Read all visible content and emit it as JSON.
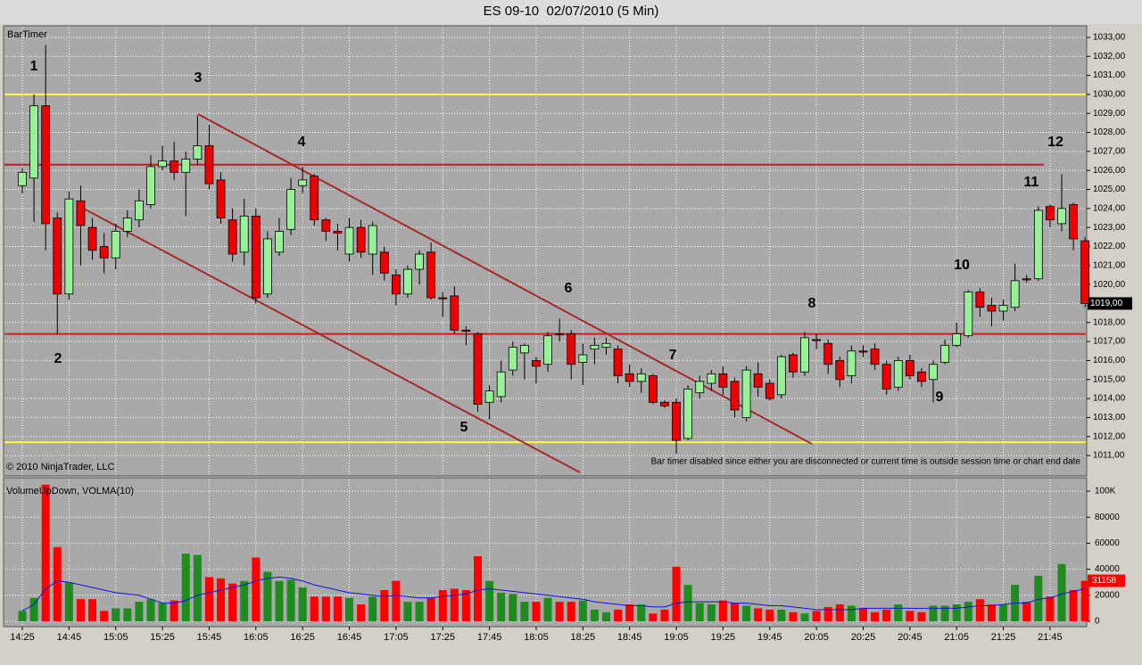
{
  "chart_data": [
    {
      "type": "candlestick",
      "title": "ES 09-10  02/07/2010 (5 Min)",
      "indicator_label": "BarTimer",
      "copyright": "© 2010 NinjaTrader, LLC",
      "notice": "Bar timer disabled since either you are disconnected or current time is outside session time or chart end date",
      "up_color": "#98f098",
      "down_color": "#ee0000",
      "open": [
        1025.2,
        1025.6,
        1029.4,
        1023.5,
        1019.5,
        1024.4,
        1023,
        1022,
        1021.4,
        1022.8,
        1023.4,
        1024.2,
        1026.2,
        1026.5,
        1025.9,
        1026.6,
        1027.3,
        1025.5,
        1023.4,
        1021.7,
        1023.6,
        1019.5,
        1021.7,
        1022.9,
        1025.2,
        1025.7,
        1023.4,
        1022.8,
        1021.6,
        1023,
        1021.6,
        1021.7,
        1020.5,
        1019.5,
        1020.8,
        1021.7,
        1019.3,
        1019.4,
        1017.6,
        1017.4,
        1013.8,
        1014.1,
        1015.5,
        1016.4,
        1016,
        1015.8,
        1017.4,
        1017.4,
        1015.9,
        1016.6,
        1016.7,
        1016.6,
        1015.3,
        1014.9,
        1015.2,
        1013.8,
        1013.8,
        1011.9,
        1014.3,
        1014.8,
        1015.3,
        1014.9,
        1013,
        1015.3,
        1014.8,
        1014.2,
        1016.3,
        1015.4,
        1017.1,
        1016.9,
        1016,
        1015.2,
        1016.5,
        1016.6,
        1015.8,
        1014.6,
        1016,
        1015.4,
        1015,
        1015.9,
        1016.8,
        1017.3,
        1019.6,
        1018.9,
        1018.6,
        1018.8,
        1020.3,
        1020.3,
        1024.1,
        1023.2,
        1024.2,
        1022.3
      ],
      "high": [
        1026.1,
        1030,
        1032.6,
        1023.8,
        1024.9,
        1025.2,
        1023.5,
        1022.7,
        1023.2,
        1023.9,
        1025,
        1026.8,
        1027.3,
        1027.5,
        1027,
        1028.9,
        1028.4,
        1025.9,
        1024,
        1024.5,
        1024,
        1022.8,
        1023.5,
        1025.6,
        1026.2,
        1025.8,
        1023.5,
        1023.2,
        1023.5,
        1023.4,
        1023.3,
        1022,
        1020.8,
        1021,
        1021.8,
        1022.2,
        1019.6,
        1019.9,
        1017.8,
        1017.5,
        1014.7,
        1016,
        1017,
        1016.9,
        1016.2,
        1017.5,
        1018.2,
        1017.6,
        1016.9,
        1017.2,
        1017.2,
        1016.8,
        1015.8,
        1015.6,
        1015.3,
        1013.9,
        1014,
        1014.7,
        1015.2,
        1015.5,
        1015.7,
        1015.1,
        1015.7,
        1015.9,
        1015,
        1016.3,
        1016.4,
        1017.5,
        1017.4,
        1017.1,
        1016.2,
        1016.8,
        1016.8,
        1016.9,
        1016,
        1016.2,
        1016.3,
        1015.6,
        1016,
        1017.1,
        1018,
        1019.7,
        1019.8,
        1019.3,
        1019.2,
        1021.1,
        1020.5,
        1024.1,
        1024.2,
        1025.8,
        1024.3,
        1022.5
      ],
      "low": [
        1024.8,
        1023.3,
        1021.8,
        1017.4,
        1019.2,
        1021,
        1021.3,
        1020.6,
        1020.8,
        1022.5,
        1023,
        1024,
        1026,
        1025.5,
        1023.6,
        1026.3,
        1025,
        1023.2,
        1021.2,
        1021,
        1019,
        1019.3,
        1021.5,
        1022.6,
        1024.8,
        1023.1,
        1022.3,
        1021.8,
        1021.2,
        1021.4,
        1020.5,
        1020.2,
        1018.9,
        1019.3,
        1020,
        1019.2,
        1018.3,
        1017.4,
        1016.8,
        1013.3,
        1012.9,
        1013.8,
        1015.2,
        1015,
        1014.8,
        1015.4,
        1017,
        1015,
        1014.7,
        1015.8,
        1016.3,
        1014.8,
        1014.6,
        1014.3,
        1013.7,
        1013.5,
        1011.1,
        1011.8,
        1014,
        1014.4,
        1014.2,
        1013,
        1012.8,
        1014.1,
        1013.9,
        1014,
        1015.1,
        1015.2,
        1016.6,
        1015.3,
        1014.6,
        1014.8,
        1016.2,
        1015.5,
        1014.2,
        1014.4,
        1015,
        1014.6,
        1013.8,
        1015.8,
        1016.7,
        1017.2,
        1018.3,
        1017.8,
        1018.1,
        1018.6,
        1020.1,
        1020.2,
        1023,
        1022.8,
        1021.8,
        1018.8
      ],
      "close": [
        1025.9,
        1029.4,
        1023.2,
        1019.5,
        1024.5,
        1023.1,
        1021.8,
        1021.4,
        1022.8,
        1023.5,
        1024.4,
        1026.2,
        1026.5,
        1025.9,
        1026.6,
        1027.3,
        1025.3,
        1023.5,
        1021.6,
        1023.6,
        1019.3,
        1022.4,
        1022.8,
        1025,
        1025.5,
        1023.4,
        1022.8,
        1022.7,
        1023,
        1021.7,
        1023.1,
        1020.6,
        1019.5,
        1020.8,
        1021.6,
        1019.3,
        1019.3,
        1017.6,
        1017.6,
        1013.7,
        1014.4,
        1015.4,
        1016.7,
        1016.8,
        1015.7,
        1017.3,
        1017.4,
        1015.8,
        1016.3,
        1016.8,
        1016.9,
        1015.2,
        1014.9,
        1015.3,
        1013.8,
        1013.6,
        1011.8,
        1014.5,
        1014.9,
        1015.3,
        1014.6,
        1013.4,
        1015.5,
        1014.6,
        1014,
        1016.2,
        1015.4,
        1017.2,
        1017.1,
        1015.8,
        1015,
        1016.5,
        1016.5,
        1015.8,
        1014.5,
        1016,
        1015.2,
        1014.9,
        1015.8,
        1016.8,
        1017.4,
        1019.6,
        1018.8,
        1018.6,
        1018.9,
        1020.2,
        1020.3,
        1023.9,
        1023.4,
        1024,
        1022.4,
        1019
      ],
      "last_close_label": "1019,00",
      "levels": [
        {
          "value": 1030,
          "color": "#ffff33"
        },
        {
          "value": 1011.7,
          "color": "#ffff33"
        },
        {
          "value": 1026.3,
          "color": "#a52a2a"
        },
        {
          "value": 1017.4,
          "color": "#e01818"
        }
      ],
      "annotations": [
        "1",
        "2",
        "3",
        "4",
        "5",
        "6",
        "7",
        "8",
        "9",
        "10",
        "11",
        "12"
      ],
      "ylim": [
        1009.97,
        1033.56
      ],
      "yticks": [
        {
          "value": 1011,
          "label": "1011,00"
        },
        {
          "value": 1012,
          "label": "1012,00"
        },
        {
          "value": 1013,
          "label": "1013,00"
        },
        {
          "value": 1014,
          "label": "1014,00"
        },
        {
          "value": 1015,
          "label": "1015,00"
        },
        {
          "value": 1016,
          "label": "1016,00"
        },
        {
          "value": 1017,
          "label": "1017,00"
        },
        {
          "value": 1018,
          "label": "1018,00"
        },
        {
          "value": 1019,
          "label": "1019,00"
        },
        {
          "value": 1020,
          "label": "1020,00"
        },
        {
          "value": 1021,
          "label": "1021,00"
        },
        {
          "value": 1022,
          "label": "1022,00"
        },
        {
          "value": 1023,
          "label": "1023,00"
        },
        {
          "value": 1024,
          "label": "1024,00"
        },
        {
          "value": 1025,
          "label": "1025,00"
        },
        {
          "value": 1026,
          "label": "1026,00"
        },
        {
          "value": 1027,
          "label": "1027,00"
        },
        {
          "value": 1028,
          "label": "1028,00"
        },
        {
          "value": 1029,
          "label": "1029,00"
        },
        {
          "value": 1030,
          "label": "1030,00"
        },
        {
          "value": 1031,
          "label": "1031,00"
        },
        {
          "value": 1032,
          "label": "1032,00"
        },
        {
          "value": 1033,
          "label": "1033,00"
        }
      ],
      "grid": true
    },
    {
      "type": "bar",
      "title": "VolumeUpDown, VOLMA(10)",
      "categories": [
        "14:25",
        null,
        null,
        null,
        "14:45",
        null,
        null,
        null,
        "15:05",
        null,
        null,
        null,
        "15:25",
        null,
        null,
        null,
        "15:45",
        null,
        null,
        null,
        "16:05",
        null,
        null,
        null,
        "16:25",
        null,
        null,
        null,
        "16:45",
        null,
        null,
        null,
        "17:05",
        null,
        null,
        null,
        "17:25",
        null,
        null,
        null,
        "17:45",
        null,
        null,
        null,
        "18:05",
        null,
        null,
        null,
        "18:25",
        null,
        null,
        null,
        "18:45",
        null,
        null,
        null,
        "19:05",
        null,
        null,
        null,
        "19:25",
        null,
        null,
        null,
        "19:45",
        null,
        null,
        null,
        "20:05",
        null,
        null,
        null,
        "20:25",
        null,
        null,
        null,
        "20:45",
        null,
        null,
        null,
        "21:05",
        null,
        null,
        null,
        "21:25",
        null,
        null,
        null,
        "21:45",
        null,
        null,
        null
      ],
      "values": [
        8000,
        18000,
        105000,
        57000,
        30000,
        17000,
        17000,
        8000,
        10000,
        10000,
        15000,
        17000,
        14000,
        16000,
        52000,
        51000,
        34000,
        33000,
        29000,
        31000,
        49000,
        38000,
        31000,
        32000,
        26000,
        19000,
        19000,
        19000,
        18000,
        13000,
        19000,
        24000,
        31000,
        15000,
        15000,
        18000,
        24000,
        25000,
        24000,
        50000,
        31000,
        22000,
        21000,
        15000,
        15000,
        18000,
        15000,
        15000,
        16000,
        9000,
        7000,
        9000,
        13000,
        13000,
        6000,
        9000,
        42000,
        28000,
        14000,
        13000,
        16000,
        14000,
        12000,
        10000,
        9000,
        9000,
        7000,
        6000,
        8000,
        11000,
        13000,
        12000,
        10000,
        7000,
        9000,
        13000,
        8000,
        7000,
        12000,
        12000,
        13000,
        15000,
        17000,
        13000,
        13000,
        28000,
        15000,
        35000,
        19000,
        44000,
        24000,
        31158
      ],
      "up_color": "#1e8c1e",
      "down_color": "#ff0000",
      "ma": {
        "color": "#1010e0",
        "values": [
          8000,
          13000,
          25000,
          31000,
          30000,
          28000,
          26000,
          24000,
          22000,
          21000,
          20000,
          17000,
          14000,
          14000,
          16000,
          20000,
          22000,
          24000,
          26000,
          28000,
          31000,
          33000,
          34000,
          33000,
          31000,
          28000,
          26000,
          24000,
          22000,
          21000,
          20000,
          19000,
          20000,
          19000,
          18000,
          18000,
          19000,
          20000,
          21000,
          24000,
          25000,
          24000,
          23000,
          22000,
          21000,
          20000,
          19000,
          18000,
          17000,
          15000,
          14000,
          13000,
          12000,
          12000,
          11000,
          11000,
          14000,
          15000,
          15000,
          15000,
          15000,
          14000,
          14000,
          13000,
          12000,
          12000,
          11000,
          10000,
          9000,
          9000,
          9000,
          9000,
          10000,
          10000,
          10000,
          10000,
          10000,
          10000,
          10000,
          10000,
          10000,
          11000,
          12000,
          12000,
          13000,
          14000,
          14000,
          17000,
          18000,
          21000,
          23000,
          25000
        ]
      },
      "ylim": [
        0,
        108900
      ],
      "yticks": [
        0,
        20000,
        40000,
        60000,
        80000,
        {
          "value": 100000,
          "label": "100K"
        }
      ]
    }
  ]
}
